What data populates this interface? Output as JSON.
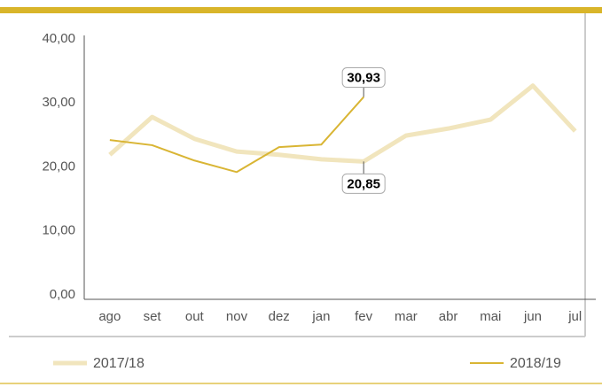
{
  "chart_data": {
    "type": "line",
    "categories": [
      "ago",
      "set",
      "out",
      "nov",
      "dez",
      "jan",
      "fev",
      "mar",
      "abr",
      "mai",
      "jun",
      "jul"
    ],
    "series": [
      {
        "name": "2017/18",
        "color": "#f1e5bd",
        "values": [
          21.9,
          27.8,
          24.4,
          22.4,
          21.9,
          21.2,
          20.85,
          24.9,
          26.0,
          27.4,
          32.7,
          25.6
        ],
        "value_labels": [
          null,
          null,
          null,
          null,
          null,
          null,
          "20,85",
          null,
          null,
          null,
          null,
          null
        ]
      },
      {
        "name": "2018/19",
        "color": "#d9b534",
        "values": [
          24.2,
          23.4,
          21.0,
          19.2,
          23.1,
          23.5,
          30.93,
          null,
          null,
          null,
          null,
          null
        ],
        "value_labels": [
          null,
          null,
          null,
          null,
          null,
          null,
          "30,93",
          null,
          null,
          null,
          null,
          null
        ]
      }
    ],
    "ylim": [
      0,
      40
    ],
    "yticks": [
      {
        "value": 0,
        "label": "0,00"
      },
      {
        "value": 10,
        "label": "10,00"
      },
      {
        "value": 20,
        "label": "20,00"
      },
      {
        "value": 30,
        "label": "30,00"
      },
      {
        "value": 40,
        "label": "40,00"
      }
    ]
  }
}
